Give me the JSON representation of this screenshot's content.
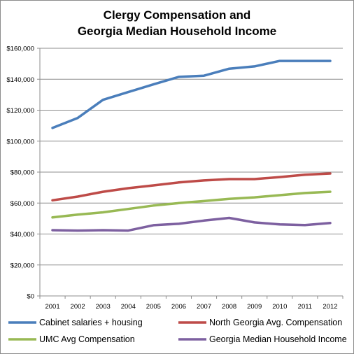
{
  "chart_data": {
    "type": "line",
    "title_lines": [
      "Clergy Compensation and",
      "Georgia Median Household Income"
    ],
    "xlabel": "",
    "ylabel": "",
    "x": [
      "2001",
      "2002",
      "2003",
      "2004",
      "2005",
      "2006",
      "2007",
      "2008",
      "2009",
      "2010",
      "2011",
      "2012"
    ],
    "ylim": [
      0,
      160000
    ],
    "yticks": [
      0,
      20000,
      40000,
      60000,
      80000,
      100000,
      120000,
      140000,
      160000
    ],
    "ytick_labels": [
      "$0",
      "$20,000",
      "$40,000",
      "$60,000",
      "$80,000",
      "$100,000",
      "$120,000",
      "$140,000",
      "$160,000"
    ],
    "grid": "horizontal",
    "legend_position": "bottom",
    "series": [
      {
        "name": "Cabinet salaries + housing",
        "color": "#4a7ebb",
        "values": [
          108500,
          115000,
          126700,
          131700,
          136700,
          141500,
          142300,
          146800,
          148300,
          151800,
          151800,
          151800
        ]
      },
      {
        "name": "North Georgia Avg. Compensation",
        "color": "#be4b48",
        "values": [
          61800,
          64200,
          67300,
          69600,
          71400,
          73300,
          74600,
          75500,
          75500,
          76800,
          78300,
          79100
        ]
      },
      {
        "name": "UMC Avg Compensation",
        "color": "#98b954",
        "values": [
          50700,
          52500,
          54000,
          56200,
          58400,
          60000,
          61300,
          62700,
          63700,
          65100,
          66500,
          67300
        ]
      },
      {
        "name": "Georgia Median Household Income",
        "color": "#7d60a0",
        "values": [
          42500,
          42200,
          42500,
          42200,
          45700,
          46600,
          48700,
          50400,
          47500,
          46200,
          45800,
          47100
        ]
      }
    ]
  }
}
